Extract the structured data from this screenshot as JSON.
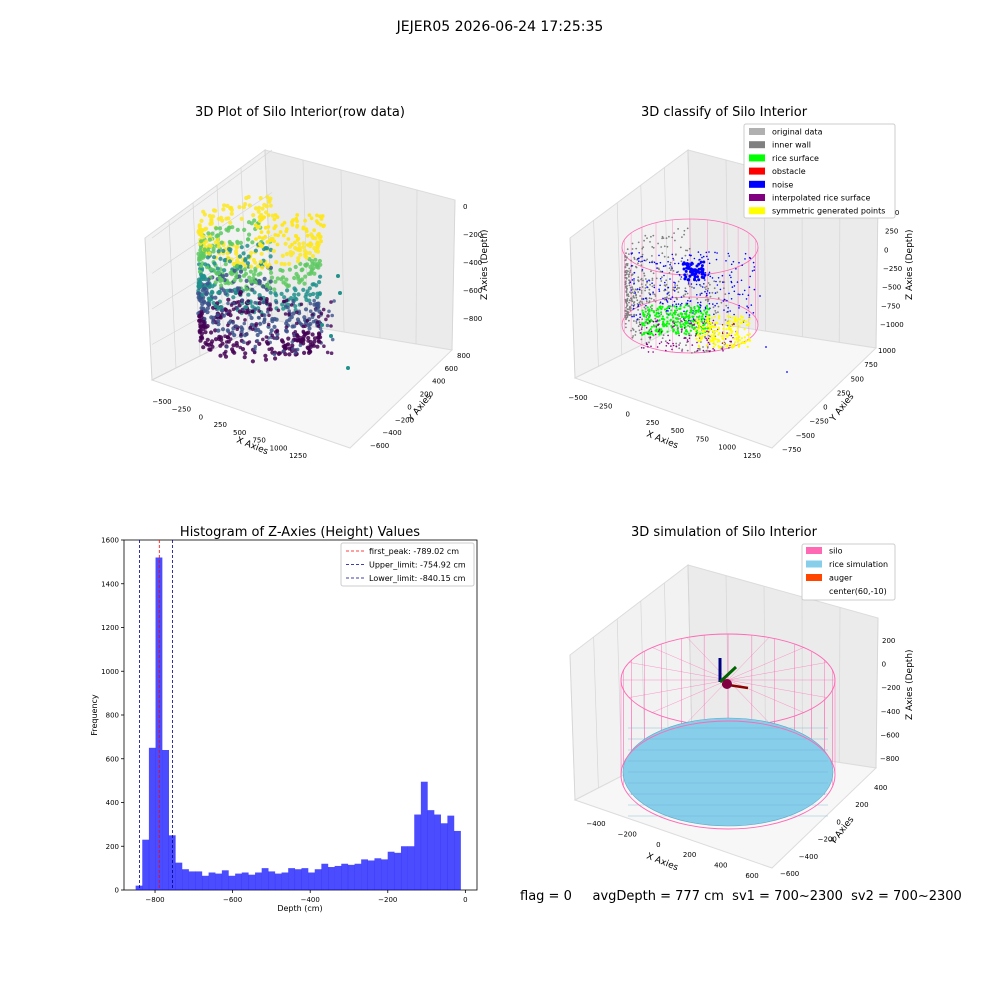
{
  "suptitle": "JEJER05 2026-06-24 17:25:35",
  "status_line": "flag = 0     avgDepth = 777 cm  sv1 = 700~2300  sv2 = 700~2300",
  "colors": {
    "viridis": [
      "#440154",
      "#3b528b",
      "#21918c",
      "#5ec962",
      "#fde725"
    ],
    "original": "#b0b0b0",
    "inner_wall": "#808080",
    "rice_surface": "#00ff00",
    "obstacle": "#ff0000",
    "noise": "#0000ff",
    "interp": "#800080",
    "symmetric": "#ffff00",
    "silo": "#ff69b4",
    "rice_sim": "#87ceeb",
    "auger": "#ff4500",
    "hist_bar": "#0000ff",
    "peak_line": "#ff0000",
    "limit_line": "#00008b"
  },
  "chart_data": [
    {
      "type": "scatter",
      "title": "3D Plot of Silo Interior(row data)",
      "xlabel": "X Axies",
      "ylabel": "Y Axies",
      "zlabel": "Z Axies (Depth)",
      "x_ticks": [
        "−500",
        "−250",
        "0",
        "250",
        "500",
        "750",
        "1000",
        "1250"
      ],
      "y_ticks": [
        "−600",
        "−400",
        "−200",
        "0",
        "200",
        "400",
        "600",
        "800"
      ],
      "z_ticks": [
        "−800",
        "−600",
        "−400",
        "−200",
        "0"
      ],
      "xlim": [
        -550,
        1300
      ],
      "ylim": [
        -650,
        850
      ],
      "zlim": [
        -900,
        0
      ]
    },
    {
      "type": "scatter",
      "title": "3D classify of Silo Interior",
      "xlabel": "X Axies",
      "ylabel": "Y Axies",
      "zlabel": "Z Axies (Depth)",
      "x_ticks": [
        "−500",
        "−250",
        "0",
        "250",
        "500",
        "750",
        "1000",
        "1250"
      ],
      "y_ticks": [
        "−750",
        "−500",
        "−250",
        "0",
        "250",
        "500",
        "750",
        "1000"
      ],
      "z_ticks": [
        "−1000",
        "−750",
        "−500",
        "−250",
        "0",
        "250",
        "500"
      ],
      "legend": [
        "original data",
        "inner wall",
        "rice surface",
        "obstacle",
        "noise",
        "interpolated rice surface",
        "symmetric generated points"
      ],
      "legend_loc": "upper right"
    },
    {
      "type": "bar",
      "title": "Histogram of Z-Axies (Height) Values",
      "xlabel": "Depth (cm)",
      "ylabel": "Frequency",
      "xlim": [
        -880,
        30
      ],
      "ylim": [
        0,
        1600
      ],
      "x_ticks": [
        "−800",
        "−600",
        "−400",
        "−200",
        "0"
      ],
      "y_ticks": [
        "0",
        "200",
        "400",
        "600",
        "800",
        "1000",
        "1200",
        "1400",
        "1600"
      ],
      "bin_edges_start": -850,
      "bin_width": 17.1,
      "values": [
        20,
        230,
        650,
        1520,
        640,
        250,
        125,
        95,
        85,
        85,
        65,
        80,
        75,
        90,
        65,
        75,
        80,
        70,
        80,
        100,
        85,
        75,
        80,
        100,
        95,
        100,
        80,
        95,
        120,
        105,
        110,
        120,
        115,
        120,
        140,
        135,
        145,
        140,
        175,
        170,
        200,
        200,
        345,
        495,
        365,
        345,
        305,
        340,
        270
      ],
      "lines": [
        {
          "label": "first_peak: -789.02 cm",
          "x": -789.02,
          "color_key": "peak_line"
        },
        {
          "label": "Upper_limit: -754.92 cm",
          "x": -754.92,
          "color_key": "limit_line"
        },
        {
          "label": "Lower_limit: -840.15 cm",
          "x": -840.15,
          "color_key": "limit_line"
        }
      ],
      "legend_loc": "upper right"
    },
    {
      "type": "scatter",
      "title": "3D simulation of Silo Interior",
      "xlabel": "X Axies",
      "ylabel": "Y Axies",
      "zlabel": "Z Axies (Depth)",
      "x_ticks": [
        "−400",
        "−200",
        "0",
        "200",
        "400",
        "600"
      ],
      "y_ticks": [
        "−600",
        "−400",
        "−200",
        "0",
        "200",
        "400"
      ],
      "z_ticks": [
        "−800",
        "−600",
        "−400",
        "−200",
        "0",
        "200"
      ],
      "legend": [
        "silo",
        "rice simulation",
        "auger",
        "center(60,-10)"
      ],
      "legend_loc": "upper right"
    }
  ]
}
